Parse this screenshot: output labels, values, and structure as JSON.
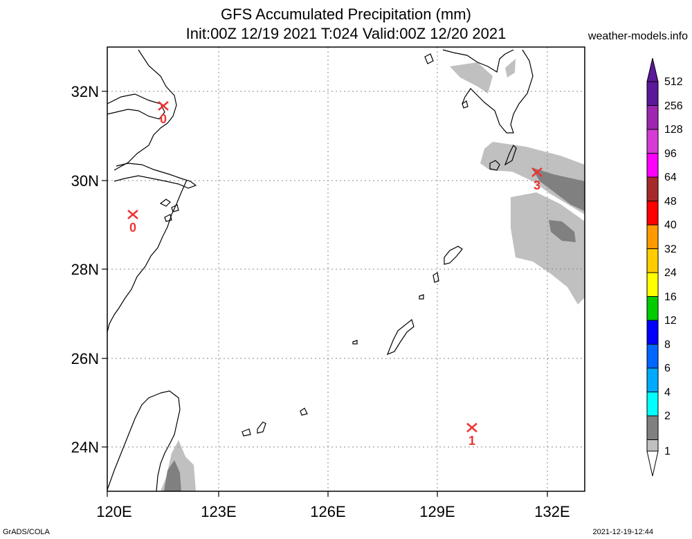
{
  "header": {
    "title": "GFS Accumulated Precipitation (mm)",
    "subtitle": "Init:00Z 12/19 2021 T:024 Valid:00Z 12/20 2021",
    "site": "weather-models.info"
  },
  "axes": {
    "lon_labels": [
      "120E",
      "123E",
      "126E",
      "129E",
      "132E"
    ],
    "lat_labels": [
      "32N",
      "30N",
      "28N",
      "26N",
      "24N"
    ]
  },
  "stations": [
    {
      "lon": 121.5,
      "lat": 31.6,
      "value": "0"
    },
    {
      "lon": 120.7,
      "lat": 29.2,
      "value": "0"
    },
    {
      "lon": 131.8,
      "lat": 30.1,
      "value": "3"
    },
    {
      "lon": 130.0,
      "lat": 24.4,
      "value": "1"
    }
  ],
  "colorbar": {
    "levels": [
      "512",
      "256",
      "128",
      "96",
      "64",
      "48",
      "40",
      "32",
      "24",
      "16",
      "12",
      "8",
      "6",
      "4",
      "2",
      "1"
    ],
    "colors": [
      "#5a189a",
      "#9c27b0",
      "#d63bd6",
      "#ff00ff",
      "#a52a2a",
      "#ff0000",
      "#ff9900",
      "#ffcc00",
      "#ffff00",
      "#00cc00",
      "#0000ff",
      "#0066ff",
      "#00aaff",
      "#00ffff",
      "#808080",
      "#c0c0c0"
    ]
  },
  "footer": {
    "left": "GrADS/COLA",
    "right": "2021-12-19-12:44"
  }
}
